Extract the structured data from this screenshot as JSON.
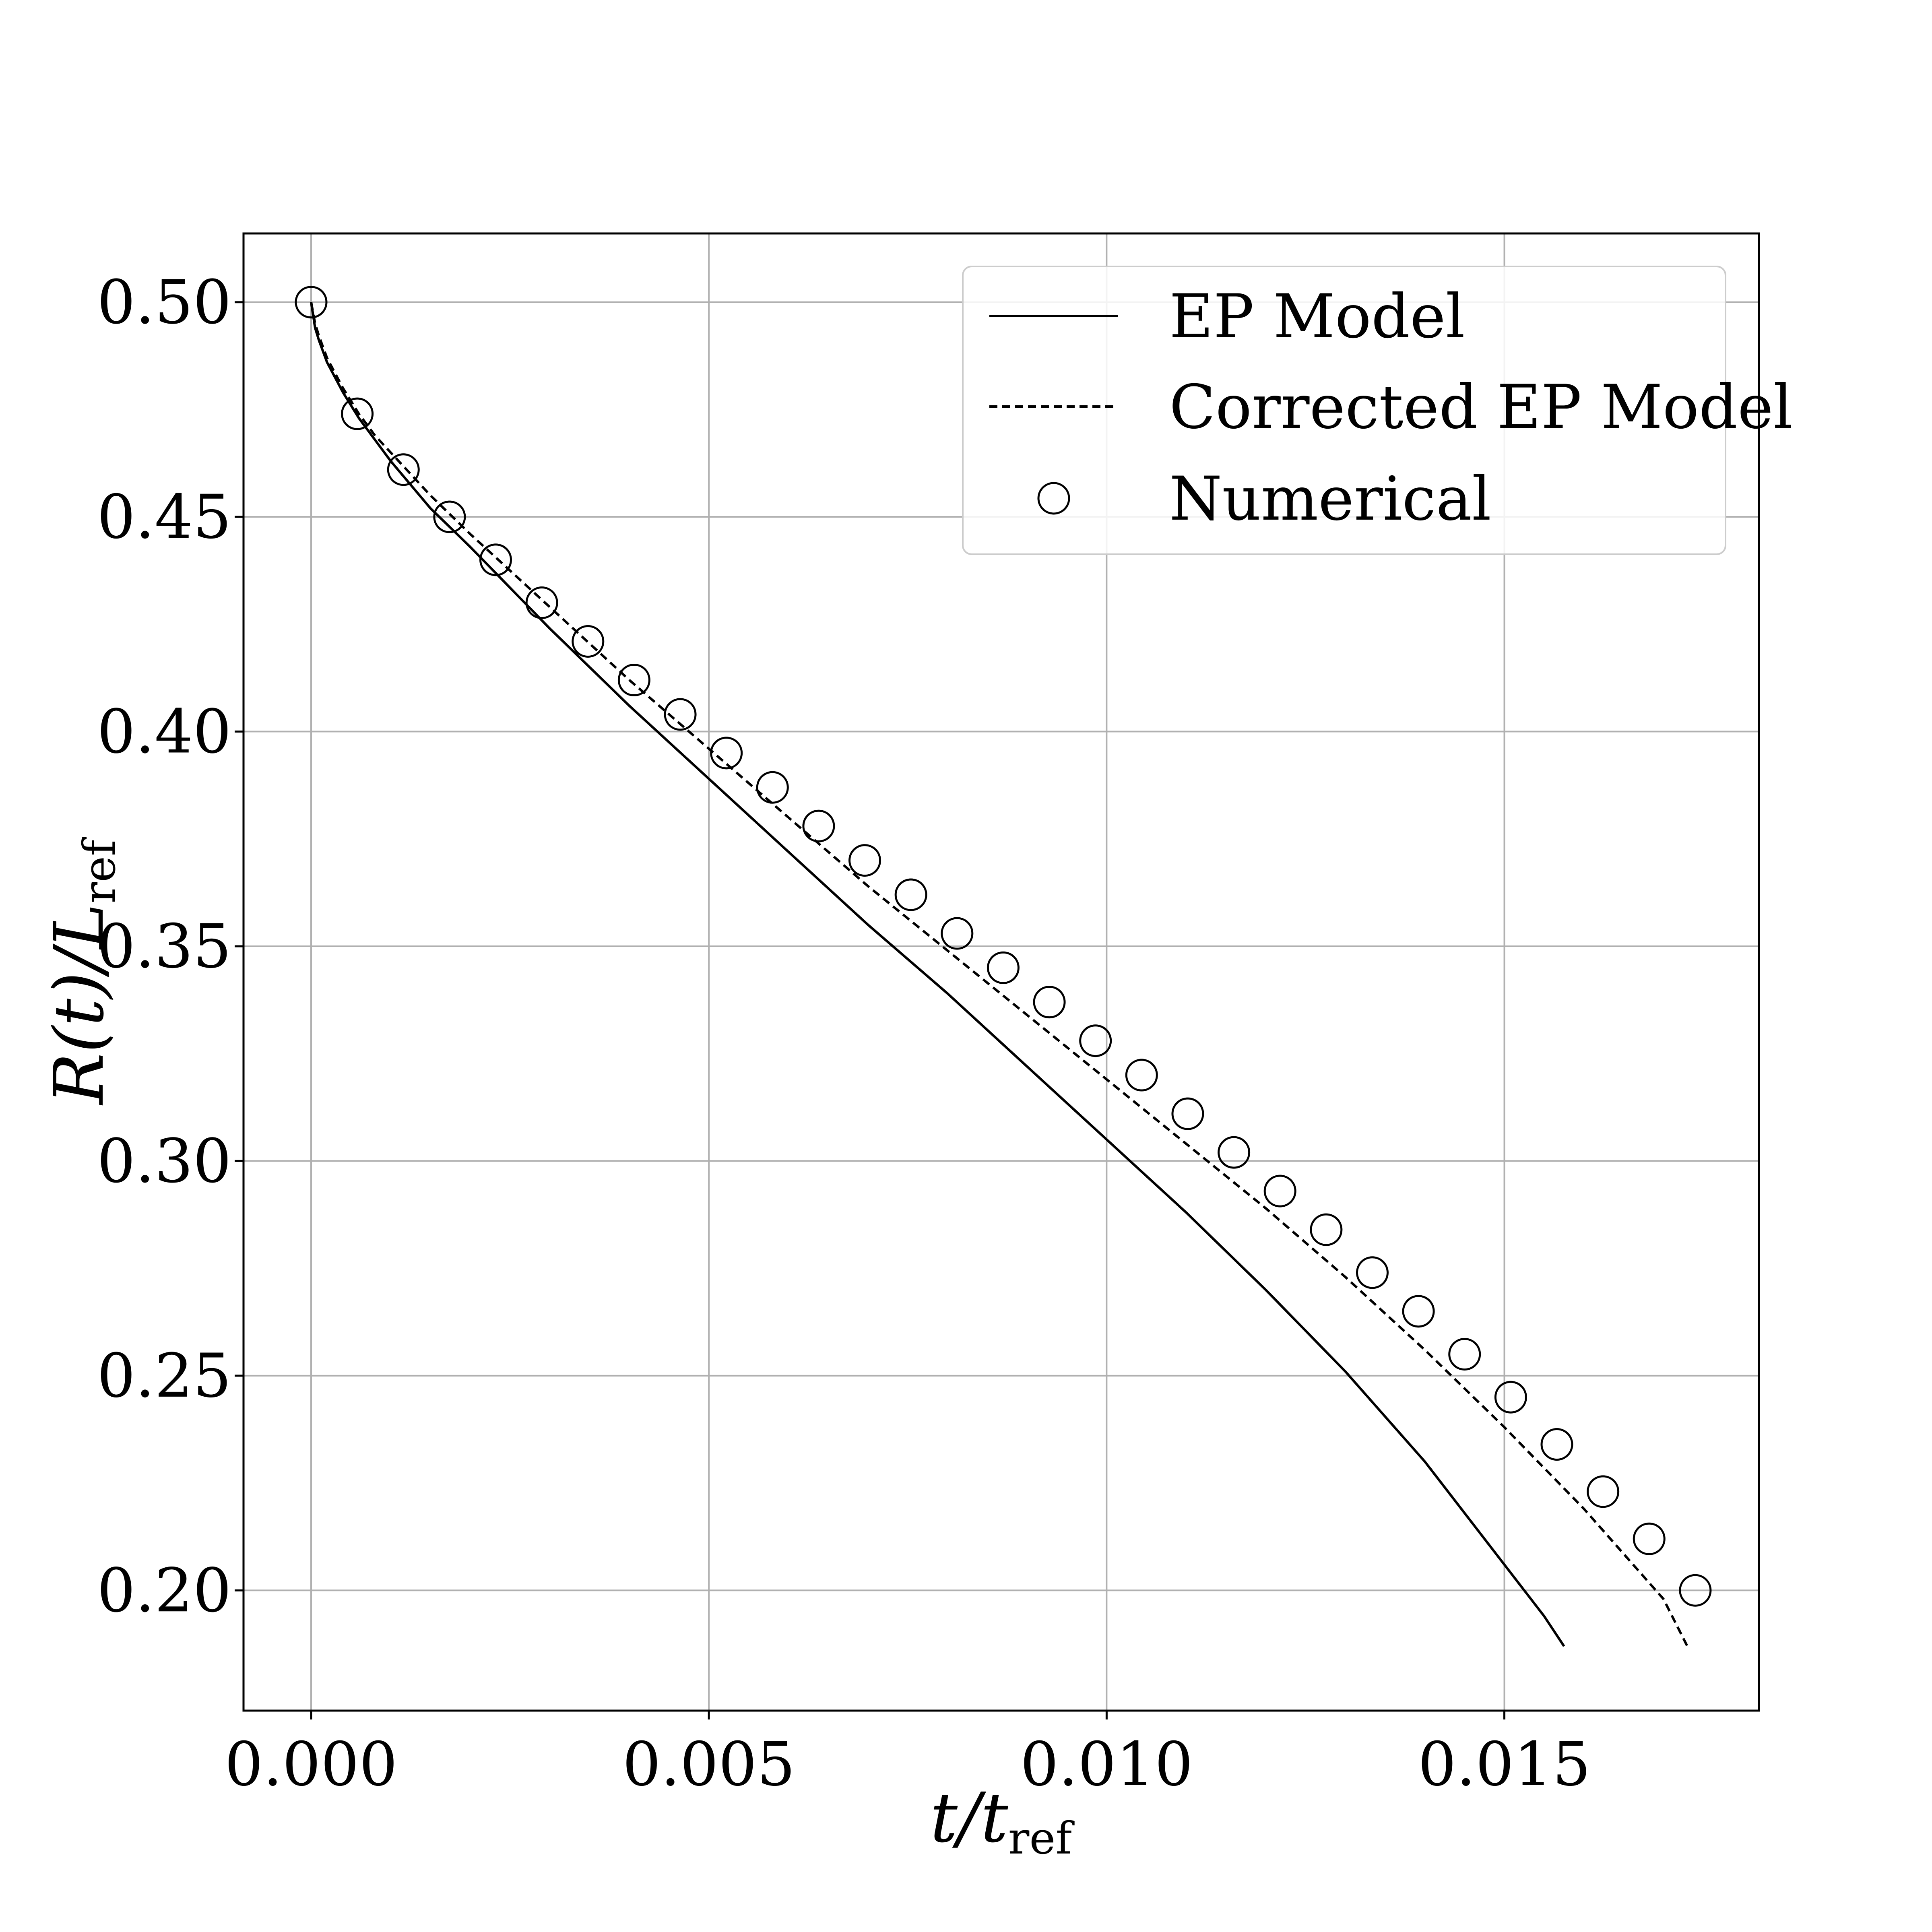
{
  "chart_data": {
    "type": "line",
    "title": "",
    "xlabel": {
      "main": "t/t",
      "sub": "ref"
    },
    "ylabel": {
      "main": "R(t)/L",
      "sub": "ref"
    },
    "xlim": [
      -0.00085,
      0.0182
    ],
    "ylim": [
      0.172,
      0.516
    ],
    "xticks": [
      0.0,
      0.005,
      0.01,
      0.015
    ],
    "xtick_labels": [
      "0.000",
      "0.005",
      "0.010",
      "0.015"
    ],
    "yticks": [
      0.2,
      0.25,
      0.3,
      0.35,
      0.4,
      0.45,
      0.5
    ],
    "ytick_labels": [
      "0.20",
      "0.25",
      "0.30",
      "0.35",
      "0.40",
      "0.45",
      "0.50"
    ],
    "grid": true,
    "legend_position": "top-right",
    "series": [
      {
        "name": "EP Model",
        "style": "solid",
        "x": [
          0.0,
          5e-05,
          0.0001,
          0.0002,
          0.0004,
          0.0006,
          0.0008,
          0.001,
          0.0015,
          0.002,
          0.003,
          0.004,
          0.005,
          0.006,
          0.007,
          0.008,
          0.009,
          0.01,
          0.011,
          0.012,
          0.013,
          0.014,
          0.015,
          0.0155,
          0.01575
        ],
        "y": [
          0.5,
          0.494,
          0.491,
          0.486,
          0.479,
          0.473,
          0.468,
          0.463,
          0.452,
          0.443,
          0.424,
          0.406,
          0.389,
          0.372,
          0.355,
          0.339,
          0.322,
          0.305,
          0.288,
          0.27,
          0.251,
          0.23,
          0.206,
          0.194,
          0.187
        ]
      },
      {
        "name": "Corrected EP Model",
        "style": "dashed",
        "x": [
          0.0,
          5e-05,
          0.0001,
          0.0002,
          0.0004,
          0.0006,
          0.0008,
          0.001,
          0.0015,
          0.002,
          0.003,
          0.004,
          0.005,
          0.006,
          0.007,
          0.008,
          0.009,
          0.01,
          0.011,
          0.012,
          0.013,
          0.014,
          0.015,
          0.016,
          0.017,
          0.0173
        ],
        "y": [
          0.5,
          0.495,
          0.492,
          0.487,
          0.48,
          0.474,
          0.469,
          0.465,
          0.455,
          0.446,
          0.429,
          0.412,
          0.396,
          0.38,
          0.364,
          0.349,
          0.334,
          0.319,
          0.304,
          0.289,
          0.273,
          0.256,
          0.238,
          0.219,
          0.198,
          0.187
        ]
      },
      {
        "name": "Numerical",
        "style": "markers",
        "x": [
          0.0,
          0.00058,
          0.00116,
          0.00174,
          0.00232,
          0.0029,
          0.00348,
          0.00406,
          0.00464,
          0.00522,
          0.0058,
          0.00638,
          0.00696,
          0.00754,
          0.00812,
          0.0087,
          0.00928,
          0.00986,
          0.01044,
          0.01102,
          0.0116,
          0.01218,
          0.01276,
          0.01334,
          0.01392,
          0.0145,
          0.01508,
          0.01566,
          0.01624,
          0.01682,
          0.0174
        ],
        "y": [
          0.5,
          0.474,
          0.461,
          0.45,
          0.44,
          0.43,
          0.421,
          0.412,
          0.404,
          0.395,
          0.387,
          0.378,
          0.37,
          0.362,
          0.353,
          0.345,
          0.337,
          0.328,
          0.32,
          0.311,
          0.302,
          0.293,
          0.284,
          0.274,
          0.265,
          0.255,
          0.245,
          0.234,
          0.223,
          0.212,
          0.2
        ]
      }
    ]
  }
}
